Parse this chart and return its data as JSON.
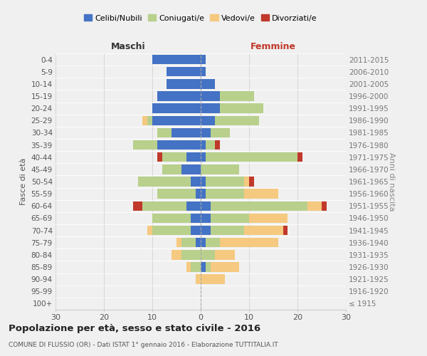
{
  "age_groups": [
    "100+",
    "95-99",
    "90-94",
    "85-89",
    "80-84",
    "75-79",
    "70-74",
    "65-69",
    "60-64",
    "55-59",
    "50-54",
    "45-49",
    "40-44",
    "35-39",
    "30-34",
    "25-29",
    "20-24",
    "15-19",
    "10-14",
    "5-9",
    "0-4"
  ],
  "birth_years": [
    "≤ 1915",
    "1916-1920",
    "1921-1925",
    "1926-1930",
    "1931-1935",
    "1936-1940",
    "1941-1945",
    "1946-1950",
    "1951-1955",
    "1956-1960",
    "1961-1965",
    "1966-1970",
    "1971-1975",
    "1976-1980",
    "1981-1985",
    "1986-1990",
    "1991-1995",
    "1996-2000",
    "2001-2005",
    "2006-2010",
    "2011-2015"
  ],
  "maschi": {
    "celibi": [
      0,
      0,
      0,
      0,
      0,
      1,
      2,
      2,
      3,
      1,
      2,
      4,
      3,
      9,
      6,
      10,
      10,
      9,
      7,
      7,
      10
    ],
    "coniugati": [
      0,
      0,
      0,
      2,
      4,
      3,
      8,
      8,
      9,
      8,
      11,
      4,
      5,
      5,
      3,
      1,
      0,
      0,
      0,
      0,
      0
    ],
    "vedovi": [
      0,
      0,
      1,
      1,
      2,
      1,
      1,
      0,
      0,
      0,
      0,
      0,
      0,
      0,
      0,
      1,
      0,
      0,
      0,
      0,
      0
    ],
    "divorziati": [
      0,
      0,
      0,
      0,
      0,
      0,
      0,
      0,
      2,
      0,
      0,
      0,
      1,
      0,
      0,
      0,
      0,
      0,
      0,
      0,
      0
    ]
  },
  "femmine": {
    "nubili": [
      0,
      0,
      0,
      1,
      0,
      1,
      2,
      2,
      2,
      1,
      1,
      0,
      1,
      1,
      2,
      3,
      4,
      4,
      3,
      1,
      1
    ],
    "coniugate": [
      0,
      0,
      0,
      1,
      3,
      3,
      7,
      8,
      20,
      8,
      8,
      8,
      19,
      2,
      4,
      9,
      9,
      7,
      0,
      0,
      0
    ],
    "vedove": [
      0,
      0,
      5,
      6,
      4,
      12,
      8,
      8,
      3,
      7,
      1,
      0,
      0,
      0,
      0,
      0,
      0,
      0,
      0,
      0,
      0
    ],
    "divorziate": [
      0,
      0,
      0,
      0,
      0,
      0,
      1,
      0,
      1,
      0,
      1,
      0,
      1,
      1,
      0,
      0,
      0,
      0,
      0,
      0,
      0
    ]
  },
  "color_celibi": "#4472c4",
  "color_coniugati": "#b8d08b",
  "color_vedovi": "#f5c97f",
  "color_divorziati": "#c0392b",
  "xlim": 30,
  "title": "Popolazione per età, sesso e stato civile - 2016",
  "subtitle": "COMUNE DI FLUSSIO (OR) - Dati ISTAT 1° gennaio 2016 - Elaborazione TUTTITALIA.IT",
  "ylabel_left": "Fasce di età",
  "ylabel_right": "Anni di nascita",
  "xlabel_maschi": "Maschi",
  "xlabel_femmine": "Femmine",
  "legend_labels": [
    "Celibi/Nubili",
    "Coniugati/e",
    "Vedovi/e",
    "Divorziati/e"
  ],
  "bg_color": "#f0f0f0"
}
